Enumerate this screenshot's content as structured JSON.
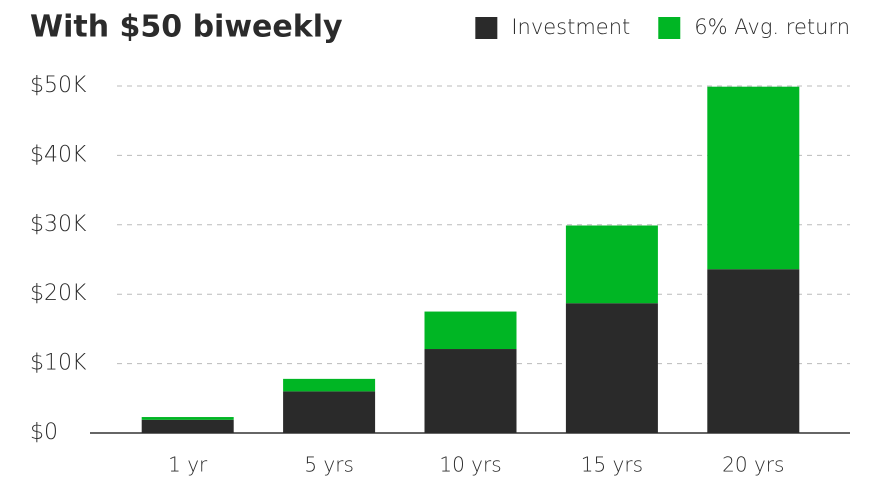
{
  "chart_data": {
    "type": "stacked-bar",
    "title": "With $50 biweekly",
    "categories": [
      "1 yr",
      "5 yrs",
      "10 yrs",
      "15 yrs",
      "20 yrs"
    ],
    "series": [
      {
        "name": "Investment",
        "color": "#2a2a2a",
        "values": [
          1900,
          6000,
          12100,
          18700,
          23600
        ]
      },
      {
        "name": "6% Avg. return",
        "color": "#00b624",
        "values": [
          400,
          1800,
          5400,
          11200,
          26300
        ]
      }
    ],
    "ylim": [
      0,
      50000
    ],
    "yticks": [
      {
        "value": 0,
        "label": "$0"
      },
      {
        "value": 10000,
        "label": "$10K"
      },
      {
        "value": 20000,
        "label": "$20K"
      },
      {
        "value": 30000,
        "label": "$30K"
      },
      {
        "value": 40000,
        "label": "$40K"
      },
      {
        "value": 50000,
        "label": "$50K"
      }
    ],
    "grid": true
  }
}
